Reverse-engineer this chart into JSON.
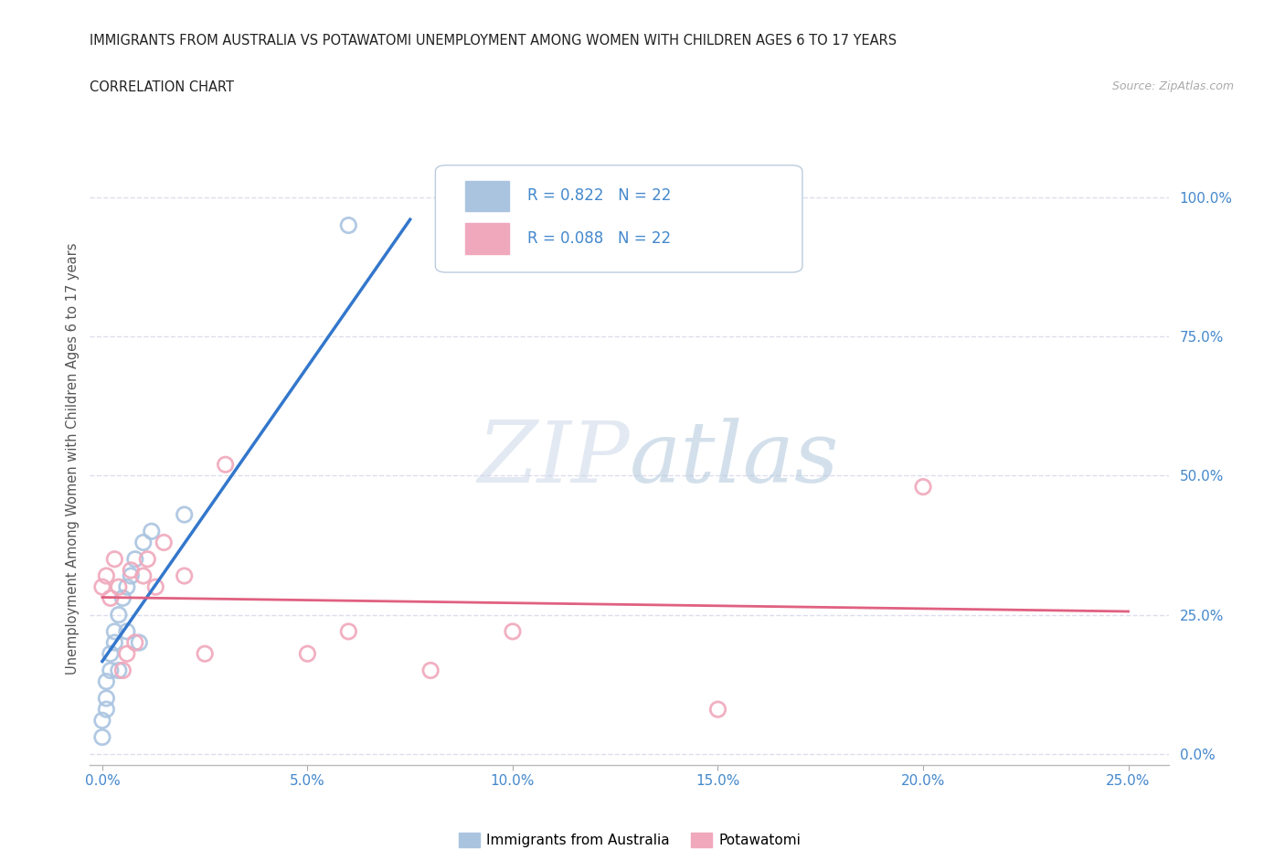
{
  "title": "IMMIGRANTS FROM AUSTRALIA VS POTAWATOMI UNEMPLOYMENT AMONG WOMEN WITH CHILDREN AGES 6 TO 17 YEARS",
  "subtitle": "CORRELATION CHART",
  "source": "Source: ZipAtlas.com",
  "ylabel": "Unemployment Among Women with Children Ages 6 to 17 years",
  "x_tick_labels": [
    "0.0%",
    "5.0%",
    "10.0%",
    "15.0%",
    "20.0%",
    "25.0%"
  ],
  "x_tick_values": [
    0.0,
    0.05,
    0.1,
    0.15,
    0.2,
    0.25
  ],
  "y_tick_labels": [
    "0.0%",
    "25.0%",
    "50.0%",
    "75.0%",
    "100.0%"
  ],
  "y_tick_values": [
    0.0,
    0.25,
    0.5,
    0.75,
    1.0
  ],
  "xlim": [
    -0.003,
    0.26
  ],
  "ylim": [
    -0.02,
    1.08
  ],
  "R_blue": "0.822",
  "N_blue": "22",
  "R_pink": "0.088",
  "N_pink": "22",
  "blue_color": "#aac4e0",
  "pink_color": "#f0a8bc",
  "line_blue": "#3377cc",
  "line_pink": "#e06080",
  "legend_label_blue": "Immigrants from Australia",
  "legend_label_pink": "Potawatomi",
  "watermark_zip": "ZIP",
  "watermark_atlas": "atlas",
  "background_color": "#ffffff",
  "grid_color": "#ddddee",
  "title_color": "#222222",
  "axis_label_color": "#4488cc",
  "blue_scatter_x": [
    0.0,
    0.0,
    0.001,
    0.001,
    0.001,
    0.002,
    0.002,
    0.003,
    0.003,
    0.004,
    0.004,
    0.005,
    0.006,
    0.006,
    0.007,
    0.008,
    0.009,
    0.01,
    0.012,
    0.02,
    0.06,
    0.09
  ],
  "blue_scatter_y": [
    0.03,
    0.06,
    0.08,
    0.1,
    0.13,
    0.15,
    0.18,
    0.2,
    0.22,
    0.15,
    0.25,
    0.28,
    0.3,
    0.22,
    0.32,
    0.35,
    0.2,
    0.38,
    0.4,
    0.43,
    0.95,
    0.97
  ],
  "pink_scatter_x": [
    0.0,
    0.001,
    0.002,
    0.003,
    0.004,
    0.005,
    0.006,
    0.007,
    0.008,
    0.01,
    0.011,
    0.013,
    0.015,
    0.02,
    0.025,
    0.03,
    0.05,
    0.06,
    0.08,
    0.1,
    0.15,
    0.2
  ],
  "pink_scatter_y": [
    0.3,
    0.32,
    0.28,
    0.35,
    0.3,
    0.15,
    0.18,
    0.33,
    0.2,
    0.32,
    0.35,
    0.3,
    0.38,
    0.32,
    0.18,
    0.52,
    0.18,
    0.22,
    0.15,
    0.22,
    0.08,
    0.48
  ],
  "blue_line_x": [
    0.0,
    0.075
  ],
  "pink_line_x": [
    0.0,
    0.25
  ]
}
